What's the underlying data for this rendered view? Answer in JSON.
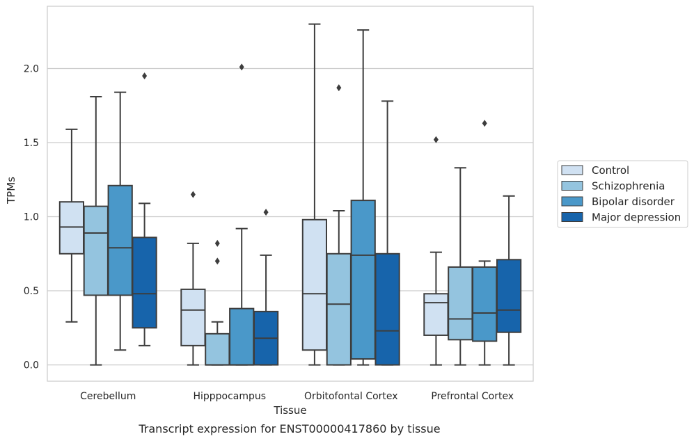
{
  "caption": "Transcript expression for ENST00000417860 by tissue",
  "chart_data": {
    "type": "box",
    "xlabel": "Tissue",
    "ylabel": "TPMs",
    "ylim": [
      -0.11,
      2.42
    ],
    "yticks": [
      0.0,
      0.5,
      1.0,
      1.5,
      2.0
    ],
    "ytick_labels": [
      "0.0",
      "0.5",
      "1.0",
      "1.5",
      "2.0"
    ],
    "grid": "horizontal",
    "legend_position": "right",
    "categories": [
      "Cerebellum",
      "Hipppocampus",
      "Orbitofontal Cortex",
      "Prefrontal Cortex"
    ],
    "series": [
      {
        "name": "Control",
        "color": "#d0e1f2",
        "boxes": [
          {
            "whisker_low": 0.29,
            "q1": 0.75,
            "median": 0.93,
            "q3": 1.1,
            "whisker_high": 1.59,
            "outliers": []
          },
          {
            "whisker_low": 0.0,
            "q1": 0.13,
            "median": 0.37,
            "q3": 0.51,
            "whisker_high": 0.82,
            "outliers": [
              1.15
            ]
          },
          {
            "whisker_low": 0.0,
            "q1": 0.1,
            "median": 0.48,
            "q3": 0.98,
            "whisker_high": 2.3,
            "outliers": []
          },
          {
            "whisker_low": 0.0,
            "q1": 0.2,
            "median": 0.42,
            "q3": 0.48,
            "whisker_high": 0.76,
            "outliers": [
              1.52
            ]
          }
        ]
      },
      {
        "name": "Schizophrenia",
        "color": "#94c4df",
        "boxes": [
          {
            "whisker_low": 0.0,
            "q1": 0.47,
            "median": 0.89,
            "q3": 1.07,
            "whisker_high": 1.81,
            "outliers": []
          },
          {
            "whisker_low": 0.0,
            "q1": 0.0,
            "median": 0.0,
            "q3": 0.21,
            "whisker_high": 0.29,
            "outliers": [
              0.7,
              0.82
            ]
          },
          {
            "whisker_low": 0.0,
            "q1": 0.0,
            "median": 0.41,
            "q3": 0.75,
            "whisker_high": 1.04,
            "outliers": [
              1.87
            ]
          },
          {
            "whisker_low": 0.0,
            "q1": 0.17,
            "median": 0.31,
            "q3": 0.66,
            "whisker_high": 1.33,
            "outliers": []
          }
        ]
      },
      {
        "name": "Bipolar disorder",
        "color": "#4a98c9",
        "boxes": [
          {
            "whisker_low": 0.1,
            "q1": 0.47,
            "median": 0.79,
            "q3": 1.21,
            "whisker_high": 1.84,
            "outliers": []
          },
          {
            "whisker_low": 0.0,
            "q1": 0.0,
            "median": 0.0,
            "q3": 0.38,
            "whisker_high": 0.92,
            "outliers": [
              2.01
            ]
          },
          {
            "whisker_low": 0.0,
            "q1": 0.04,
            "median": 0.74,
            "q3": 1.11,
            "whisker_high": 2.26,
            "outliers": []
          },
          {
            "whisker_low": 0.0,
            "q1": 0.16,
            "median": 0.35,
            "q3": 0.66,
            "whisker_high": 0.7,
            "outliers": [
              1.63
            ]
          }
        ]
      },
      {
        "name": "Major depression",
        "color": "#1764ab",
        "boxes": [
          {
            "whisker_low": 0.13,
            "q1": 0.25,
            "median": 0.48,
            "q3": 0.86,
            "whisker_high": 1.09,
            "outliers": [
              1.95
            ]
          },
          {
            "whisker_low": 0.0,
            "q1": 0.0,
            "median": 0.18,
            "q3": 0.36,
            "whisker_high": 0.74,
            "outliers": [
              1.03
            ]
          },
          {
            "whisker_low": 0.0,
            "q1": 0.0,
            "median": 0.23,
            "q3": 0.75,
            "whisker_high": 1.78,
            "outliers": []
          },
          {
            "whisker_low": 0.0,
            "q1": 0.22,
            "median": 0.37,
            "q3": 0.71,
            "whisker_high": 1.14,
            "outliers": []
          }
        ]
      }
    ]
  }
}
